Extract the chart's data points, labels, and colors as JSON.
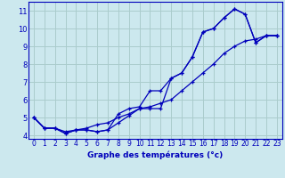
{
  "xlabel": "Graphe des températures (°c)",
  "background_color": "#cce8ee",
  "grid_color": "#aacccc",
  "line_color": "#0000bb",
  "spine_color": "#0000bb",
  "hours": [
    0,
    1,
    2,
    3,
    4,
    5,
    6,
    7,
    8,
    9,
    10,
    11,
    12,
    13,
    14,
    15,
    16,
    17,
    18,
    19,
    20,
    21,
    22,
    23
  ],
  "line1": [
    5.0,
    4.4,
    4.4,
    4.1,
    4.3,
    4.3,
    4.2,
    4.3,
    4.7,
    5.1,
    5.5,
    5.5,
    5.5,
    7.2,
    7.5,
    8.4,
    9.8,
    10.0,
    10.6,
    11.1,
    10.8,
    9.2,
    9.6,
    9.6
  ],
  "line2": [
    5.0,
    4.4,
    4.4,
    4.1,
    4.3,
    4.3,
    4.2,
    4.3,
    5.2,
    5.5,
    5.6,
    6.5,
    6.5,
    7.2,
    7.5,
    8.4,
    9.8,
    10.0,
    10.6,
    11.1,
    10.8,
    9.2,
    9.6,
    9.6
  ],
  "line3": [
    5.0,
    4.4,
    4.4,
    4.2,
    4.3,
    4.4,
    4.6,
    4.7,
    5.0,
    5.2,
    5.5,
    5.6,
    5.8,
    6.0,
    6.5,
    7.0,
    7.5,
    8.0,
    8.6,
    9.0,
    9.3,
    9.4,
    9.6,
    9.6
  ],
  "xlim": [
    0,
    23
  ],
  "ylim": [
    3.8,
    11.5
  ],
  "yticks": [
    4,
    5,
    6,
    7,
    8,
    9,
    10,
    11
  ],
  "xticks": [
    0,
    1,
    2,
    3,
    4,
    5,
    6,
    7,
    8,
    9,
    10,
    11,
    12,
    13,
    14,
    15,
    16,
    17,
    18,
    19,
    20,
    21,
    22,
    23
  ],
  "xlabel_fontsize": 6.5,
  "tick_fontsize": 6.0
}
